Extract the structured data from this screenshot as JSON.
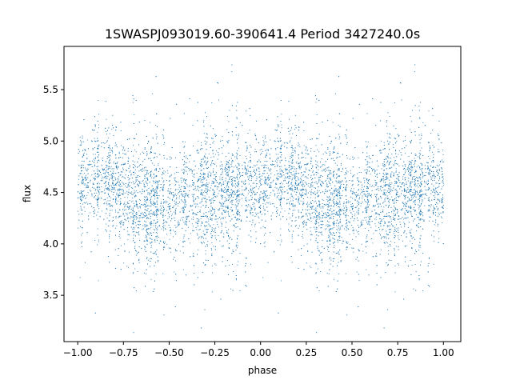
{
  "chart_data": {
    "type": "scatter",
    "title": "1SWASPJ093019.60-390641.4 Period 3427240.0s",
    "xlabel": "phase",
    "ylabel": "flux",
    "xlim": [
      -1.075,
      1.095
    ],
    "ylim": [
      3.05,
      5.92
    ],
    "xticks": [
      -1.0,
      -0.75,
      -0.5,
      -0.25,
      0.0,
      0.25,
      0.5,
      0.75,
      1.0
    ],
    "xtick_labels": [
      "−1.00",
      "−0.75",
      "−0.50",
      "−0.25",
      "0.00",
      "0.25",
      "0.50",
      "0.75",
      "1.00"
    ],
    "yticks": [
      3.5,
      4.0,
      4.5,
      5.0,
      5.5
    ],
    "ytick_labels": [
      "3.5",
      "4.0",
      "4.5",
      "5.0",
      "5.5"
    ],
    "grid": false,
    "marker_color": "#1f77b4",
    "profile": {
      "phase": [
        0.0,
        0.05,
        0.1,
        0.15,
        0.2,
        0.25,
        0.3,
        0.35,
        0.4,
        0.45,
        0.5,
        0.55,
        0.6,
        0.65,
        0.7,
        0.75,
        0.8,
        0.85,
        0.9,
        0.95,
        1.0
      ],
      "median_flux": [
        4.55,
        4.62,
        4.62,
        4.6,
        4.58,
        4.52,
        4.45,
        4.4,
        4.38,
        4.36,
        4.37,
        4.4,
        4.45,
        4.48,
        4.48,
        4.48,
        4.5,
        4.5,
        4.55,
        4.55,
        4.55
      ]
    },
    "scatter_sigma": 0.22,
    "n_points_per_cycle": 4500
  }
}
